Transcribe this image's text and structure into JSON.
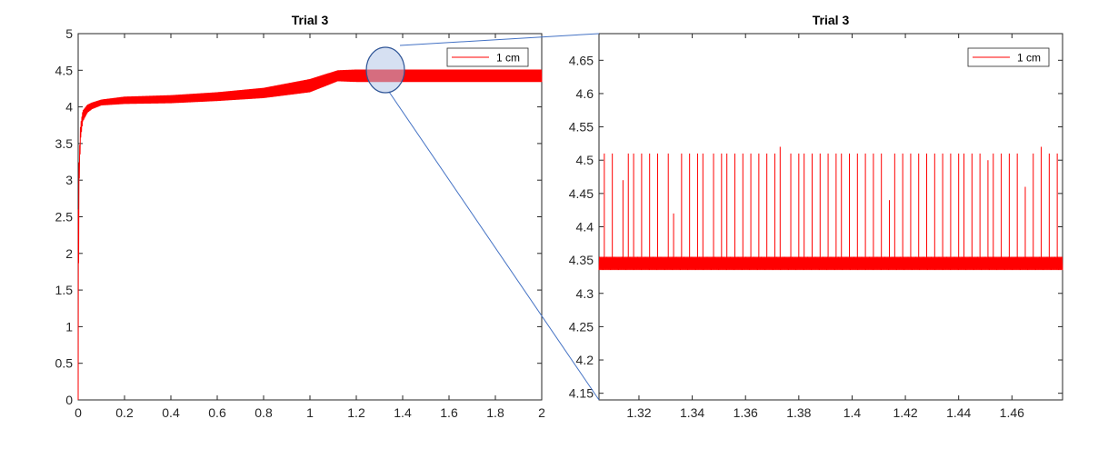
{
  "colors": {
    "series": "#ff0000",
    "axis": "#262626",
    "zoom_circle_fill": "#b4c7e7",
    "zoom_circle_stroke": "#2f5597",
    "zoom_line": "#4472c4"
  },
  "chart_data": [
    {
      "type": "line",
      "title": "Trial 3",
      "xlabel": "",
      "ylabel": "",
      "xlim": [
        0,
        2
      ],
      "ylim": [
        0,
        5
      ],
      "x_ticks": [
        0,
        0.2,
        0.4,
        0.6,
        0.8,
        1,
        1.2,
        1.4,
        1.6,
        1.8,
        2
      ],
      "x_tick_labels": [
        "0",
        "0.2",
        "0.4",
        "0.6",
        "0.8",
        "1",
        "1.2",
        "1.4",
        "1.6",
        "1.8",
        "2"
      ],
      "y_ticks": [
        0,
        0.5,
        1,
        1.5,
        2,
        2.5,
        3,
        3.5,
        4,
        4.5,
        5
      ],
      "y_tick_labels": [
        "0",
        "0.5",
        "1",
        "1.5",
        "2",
        "2.5",
        "3",
        "3.5",
        "4",
        "4.5",
        "5"
      ],
      "grid": false,
      "legend": {
        "entries": [
          "1 cm"
        ],
        "placement": "top-right"
      },
      "series": [
        {
          "name": "1 cm",
          "color": "#ff0000",
          "envelope_x": [
            0,
            0.003,
            0.01,
            0.02,
            0.04,
            0.06,
            0.1,
            0.2,
            0.4,
            0.6,
            0.8,
            1.0,
            1.12,
            1.2,
            1.4,
            1.6,
            1.8,
            2.0
          ],
          "envelope_low": [
            0,
            2.8,
            3.55,
            3.8,
            3.92,
            3.97,
            4.02,
            4.04,
            4.05,
            4.08,
            4.12,
            4.2,
            4.35,
            4.34,
            4.34,
            4.34,
            4.34,
            4.34
          ],
          "envelope_high": [
            0,
            3.2,
            3.75,
            3.95,
            4.03,
            4.06,
            4.1,
            4.14,
            4.16,
            4.2,
            4.26,
            4.38,
            4.5,
            4.51,
            4.51,
            4.51,
            4.51,
            4.51
          ]
        }
      ]
    },
    {
      "type": "line",
      "title": "Trial 3",
      "xlabel": "",
      "ylabel": "",
      "xlim": [
        1.305,
        1.479
      ],
      "ylim": [
        4.14,
        4.69
      ],
      "x_ticks": [
        1.32,
        1.34,
        1.36,
        1.38,
        1.4,
        1.42,
        1.44,
        1.46
      ],
      "x_tick_labels": [
        "1.32",
        "1.34",
        "1.36",
        "1.38",
        "1.4",
        "1.42",
        "1.44",
        "1.46"
      ],
      "y_ticks": [
        4.15,
        4.2,
        4.25,
        4.3,
        4.35,
        4.4,
        4.45,
        4.5,
        4.55,
        4.6,
        4.65
      ],
      "y_tick_labels": [
        "4.15",
        "4.2",
        "4.25",
        "4.3",
        "4.35",
        "4.4",
        "4.45",
        "4.5",
        "4.55",
        "4.6",
        "4.65"
      ],
      "grid": false,
      "legend": {
        "entries": [
          "1 cm"
        ],
        "placement": "top-right"
      },
      "series": [
        {
          "name": "1 cm",
          "color": "#ff0000",
          "baseline": 4.345,
          "band": [
            4.335,
            4.355
          ],
          "spikes_x": [
            1.307,
            1.31,
            1.314,
            1.316,
            1.318,
            1.321,
            1.324,
            1.327,
            1.331,
            1.333,
            1.336,
            1.339,
            1.342,
            1.344,
            1.348,
            1.351,
            1.353,
            1.356,
            1.359,
            1.362,
            1.365,
            1.368,
            1.371,
            1.373,
            1.377,
            1.38,
            1.382,
            1.385,
            1.388,
            1.391,
            1.394,
            1.396,
            1.399,
            1.402,
            1.405,
            1.408,
            1.411,
            1.414,
            1.416,
            1.419,
            1.422,
            1.425,
            1.428,
            1.431,
            1.434,
            1.437,
            1.44,
            1.442,
            1.445,
            1.448,
            1.451,
            1.453,
            1.456,
            1.459,
            1.462,
            1.465,
            1.468,
            1.471,
            1.474,
            1.477
          ],
          "spikes_y": [
            4.51,
            4.51,
            4.47,
            4.51,
            4.51,
            4.51,
            4.51,
            4.51,
            4.51,
            4.42,
            4.51,
            4.51,
            4.51,
            4.51,
            4.51,
            4.51,
            4.51,
            4.51,
            4.51,
            4.51,
            4.51,
            4.51,
            4.51,
            4.52,
            4.51,
            4.51,
            4.51,
            4.51,
            4.51,
            4.51,
            4.51,
            4.51,
            4.51,
            4.51,
            4.51,
            4.51,
            4.51,
            4.44,
            4.51,
            4.51,
            4.51,
            4.51,
            4.51,
            4.51,
            4.51,
            4.51,
            4.51,
            4.51,
            4.51,
            4.51,
            4.5,
            4.51,
            4.51,
            4.51,
            4.51,
            4.46,
            4.51,
            4.52,
            4.51,
            4.51
          ]
        }
      ]
    }
  ]
}
